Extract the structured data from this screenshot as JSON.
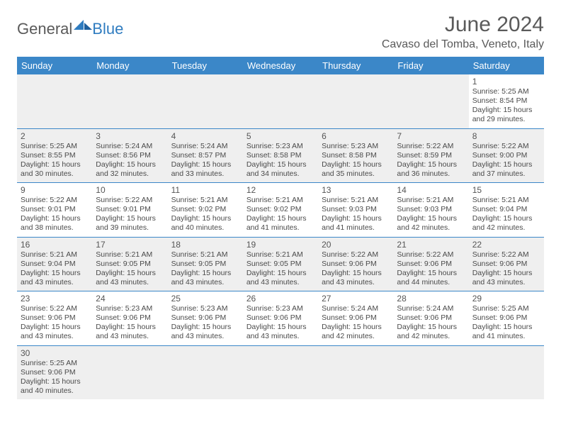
{
  "brand": {
    "general": "General",
    "blue": "Blue"
  },
  "title": "June 2024",
  "location": "Cavaso del Tomba, Veneto, Italy",
  "colors": {
    "header_bg": "#3b87c8",
    "header_fg": "#ffffff",
    "shade_bg": "#efefef",
    "border": "#3b87c8",
    "text": "#4a4a4a",
    "title_color": "#5a5a5a",
    "logo_blue": "#2f7cc0"
  },
  "weekdays": [
    "Sunday",
    "Monday",
    "Tuesday",
    "Wednesday",
    "Thursday",
    "Friday",
    "Saturday"
  ],
  "days": {
    "1": {
      "sunrise": "5:25 AM",
      "sunset": "8:54 PM",
      "daylight": "15 hours and 29 minutes."
    },
    "2": {
      "sunrise": "5:25 AM",
      "sunset": "8:55 PM",
      "daylight": "15 hours and 30 minutes."
    },
    "3": {
      "sunrise": "5:24 AM",
      "sunset": "8:56 PM",
      "daylight": "15 hours and 32 minutes."
    },
    "4": {
      "sunrise": "5:24 AM",
      "sunset": "8:57 PM",
      "daylight": "15 hours and 33 minutes."
    },
    "5": {
      "sunrise": "5:23 AM",
      "sunset": "8:58 PM",
      "daylight": "15 hours and 34 minutes."
    },
    "6": {
      "sunrise": "5:23 AM",
      "sunset": "8:58 PM",
      "daylight": "15 hours and 35 minutes."
    },
    "7": {
      "sunrise": "5:22 AM",
      "sunset": "8:59 PM",
      "daylight": "15 hours and 36 minutes."
    },
    "8": {
      "sunrise": "5:22 AM",
      "sunset": "9:00 PM",
      "daylight": "15 hours and 37 minutes."
    },
    "9": {
      "sunrise": "5:22 AM",
      "sunset": "9:01 PM",
      "daylight": "15 hours and 38 minutes."
    },
    "10": {
      "sunrise": "5:22 AM",
      "sunset": "9:01 PM",
      "daylight": "15 hours and 39 minutes."
    },
    "11": {
      "sunrise": "5:21 AM",
      "sunset": "9:02 PM",
      "daylight": "15 hours and 40 minutes."
    },
    "12": {
      "sunrise": "5:21 AM",
      "sunset": "9:02 PM",
      "daylight": "15 hours and 41 minutes."
    },
    "13": {
      "sunrise": "5:21 AM",
      "sunset": "9:03 PM",
      "daylight": "15 hours and 41 minutes."
    },
    "14": {
      "sunrise": "5:21 AM",
      "sunset": "9:03 PM",
      "daylight": "15 hours and 42 minutes."
    },
    "15": {
      "sunrise": "5:21 AM",
      "sunset": "9:04 PM",
      "daylight": "15 hours and 42 minutes."
    },
    "16": {
      "sunrise": "5:21 AM",
      "sunset": "9:04 PM",
      "daylight": "15 hours and 43 minutes."
    },
    "17": {
      "sunrise": "5:21 AM",
      "sunset": "9:05 PM",
      "daylight": "15 hours and 43 minutes."
    },
    "18": {
      "sunrise": "5:21 AM",
      "sunset": "9:05 PM",
      "daylight": "15 hours and 43 minutes."
    },
    "19": {
      "sunrise": "5:21 AM",
      "sunset": "9:05 PM",
      "daylight": "15 hours and 43 minutes."
    },
    "20": {
      "sunrise": "5:22 AM",
      "sunset": "9:06 PM",
      "daylight": "15 hours and 43 minutes."
    },
    "21": {
      "sunrise": "5:22 AM",
      "sunset": "9:06 PM",
      "daylight": "15 hours and 44 minutes."
    },
    "22": {
      "sunrise": "5:22 AM",
      "sunset": "9:06 PM",
      "daylight": "15 hours and 43 minutes."
    },
    "23": {
      "sunrise": "5:22 AM",
      "sunset": "9:06 PM",
      "daylight": "15 hours and 43 minutes."
    },
    "24": {
      "sunrise": "5:23 AM",
      "sunset": "9:06 PM",
      "daylight": "15 hours and 43 minutes."
    },
    "25": {
      "sunrise": "5:23 AM",
      "sunset": "9:06 PM",
      "daylight": "15 hours and 43 minutes."
    },
    "26": {
      "sunrise": "5:23 AM",
      "sunset": "9:06 PM",
      "daylight": "15 hours and 43 minutes."
    },
    "27": {
      "sunrise": "5:24 AM",
      "sunset": "9:06 PM",
      "daylight": "15 hours and 42 minutes."
    },
    "28": {
      "sunrise": "5:24 AM",
      "sunset": "9:06 PM",
      "daylight": "15 hours and 42 minutes."
    },
    "29": {
      "sunrise": "5:25 AM",
      "sunset": "9:06 PM",
      "daylight": "15 hours and 41 minutes."
    },
    "30": {
      "sunrise": "5:25 AM",
      "sunset": "9:06 PM",
      "daylight": "15 hours and 40 minutes."
    }
  },
  "labels": {
    "sunrise": "Sunrise:",
    "sunset": "Sunset:",
    "daylight": "Daylight:"
  },
  "grid": [
    [
      null,
      null,
      null,
      null,
      null,
      null,
      "1"
    ],
    [
      "2",
      "3",
      "4",
      "5",
      "6",
      "7",
      "8"
    ],
    [
      "9",
      "10",
      "11",
      "12",
      "13",
      "14",
      "15"
    ],
    [
      "16",
      "17",
      "18",
      "19",
      "20",
      "21",
      "22"
    ],
    [
      "23",
      "24",
      "25",
      "26",
      "27",
      "28",
      "29"
    ],
    [
      "30",
      null,
      null,
      null,
      null,
      null,
      null
    ]
  ]
}
